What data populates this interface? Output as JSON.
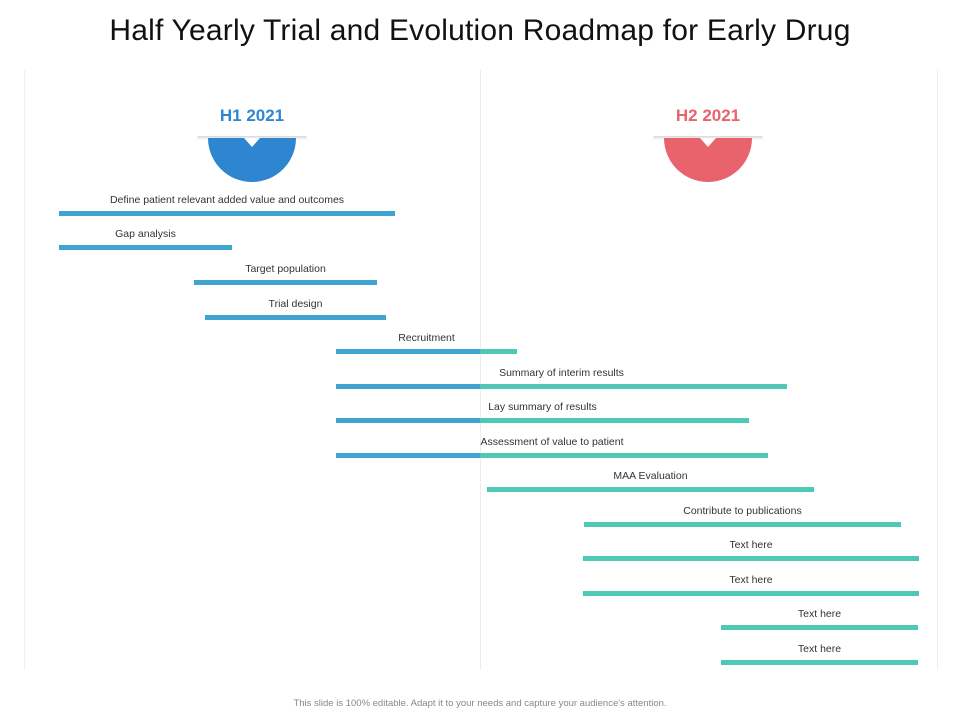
{
  "title": "Half Yearly Trial and Evolution Roadmap for Early Drug",
  "periods": [
    {
      "label": "H1 2021",
      "color": "#2e86d1"
    },
    {
      "label": "H2 2021",
      "color": "#e8636b"
    }
  ],
  "bar_colors": {
    "h1": "#3fa4d1",
    "h2": "#4fc9b6"
  },
  "tasks": [
    {
      "label": "Define patient relevant added value and outcomes"
    },
    {
      "label": "Gap analysis"
    },
    {
      "label": "Target population"
    },
    {
      "label": "Trial design"
    },
    {
      "label": "Recruitment"
    },
    {
      "label": "Summary of interim results"
    },
    {
      "label": "Lay summary of results"
    },
    {
      "label": "Assessment of value to patient"
    },
    {
      "label": "MAA Evaluation"
    },
    {
      "label": "Contribute to publications"
    },
    {
      "label": "Text here"
    },
    {
      "label": "Text here"
    },
    {
      "label": "Text here"
    },
    {
      "label": "Text here"
    }
  ],
  "footer": "This slide is 100% editable. Adapt it to your needs and capture your audience's attention."
}
